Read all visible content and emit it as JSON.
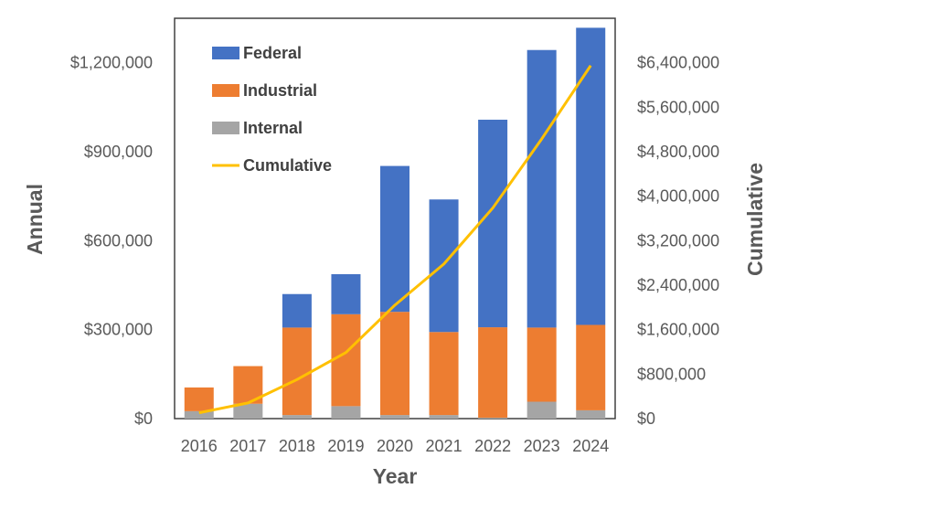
{
  "chart_data": {
    "type": "bar",
    "stacked": true,
    "categories": [
      "2016",
      "2017",
      "2018",
      "2019",
      "2020",
      "2021",
      "2022",
      "2023",
      "2024"
    ],
    "series": [
      {
        "name": "Internal",
        "axis": "left",
        "color": "#a5a5a5",
        "values": [
          25000,
          50000,
          12000,
          42000,
          12000,
          12000,
          3000,
          57000,
          28000
        ]
      },
      {
        "name": "Industrial",
        "axis": "left",
        "color": "#ed7d31",
        "values": [
          80000,
          127000,
          295000,
          310000,
          348000,
          280000,
          305000,
          250000,
          288000
        ]
      },
      {
        "name": "Federal",
        "axis": "left",
        "color": "#4472c4",
        "values": [
          0,
          0,
          113000,
          135000,
          492000,
          447000,
          700000,
          936000,
          1002000
        ]
      },
      {
        "name": "Cumulative",
        "type": "line",
        "axis": "right",
        "color": "#ffc000",
        "values": [
          105000,
          282000,
          702000,
          1189000,
          2041000,
          2780000,
          3788000,
          5031000,
          6349000
        ]
      }
    ],
    "legend_order": [
      "Federal",
      "Industrial",
      "Internal",
      "Cumulative"
    ],
    "legend_position": "top-left inside",
    "xlabel": "Year",
    "ylabel": "Annual",
    "y2label": "Cumulative",
    "ylim": [
      0,
      1350000
    ],
    "y2lim": [
      0,
      7200000
    ],
    "yticks": [
      0,
      300000,
      600000,
      900000,
      1200000
    ],
    "y2ticks": [
      0,
      800000,
      1600000,
      2400000,
      3200000,
      4000000,
      4800000,
      5600000,
      6400000
    ],
    "ytick_labels": [
      "$0",
      "$300,000",
      "$600,000",
      "$900,000",
      "$1,200,000"
    ],
    "y2tick_labels": [
      "$0",
      "$800,000",
      "$1,600,000",
      "$2,400,000",
      "$3,200,000",
      "$4,000,000",
      "$4,800,000",
      "$5,600,000",
      "$6,400,000"
    ],
    "grid": false
  }
}
